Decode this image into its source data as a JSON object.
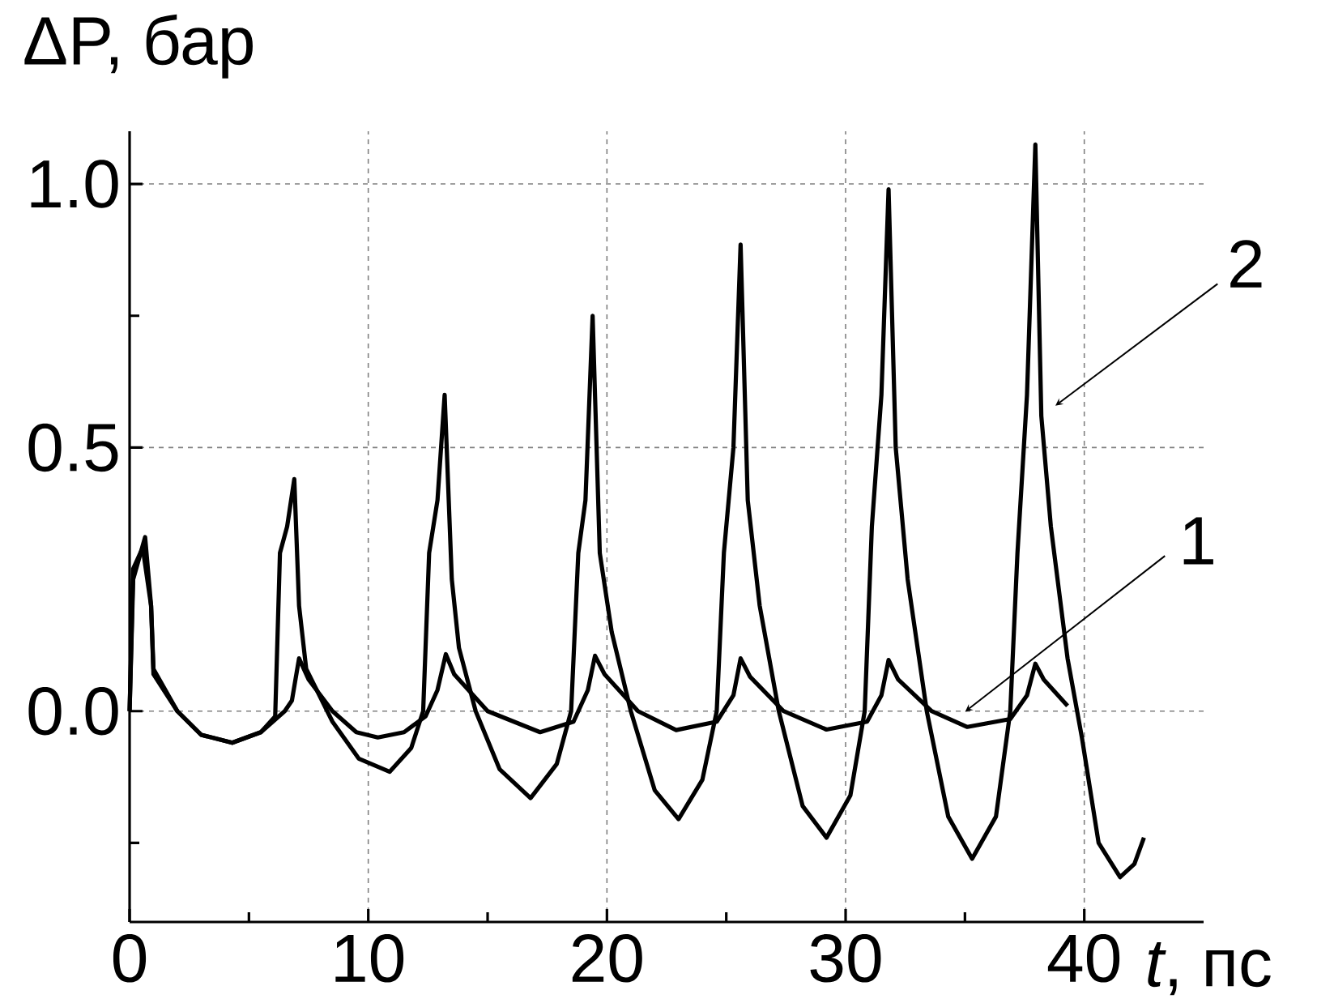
{
  "chart_data": {
    "type": "line",
    "xlabel": "*t*, пс",
    "ylabel": "ΔP, бар",
    "xlim": [
      0,
      45
    ],
    "ylim": [
      -0.4,
      1.1
    ],
    "xticks": [
      0,
      {
        "value": 5,
        "label": null
      },
      10,
      {
        "value": 15,
        "label": null
      },
      20,
      {
        "value": 25,
        "label": null
      },
      30,
      {
        "value": 35,
        "label": null
      },
      40
    ],
    "yticks": [
      {
        "value": -0.25,
        "label": null
      },
      {
        "value": 0,
        "label": "0.0"
      },
      {
        "value": 0.5,
        "label": "0.5"
      },
      {
        "value": 0.75,
        "label": null
      },
      {
        "value": 1.0,
        "label": "1.0"
      }
    ],
    "grid": true,
    "marker": "none",
    "line_style": "solid",
    "series": [
      {
        "color": "#000000",
        "x": [
          0,
          0.15,
          0.65,
          0.9,
          1.0,
          2,
          3,
          4.3,
          5.5,
          6.1,
          6.3,
          6.6,
          6.9,
          7.1,
          7.4,
          8.5,
          9.6,
          10.9,
          11.8,
          12.3,
          12.55,
          12.9,
          13.2,
          13.5,
          13.8,
          14.5,
          15.5,
          16.8,
          17.9,
          18.5,
          18.8,
          19.1,
          19.4,
          19.7,
          20.2,
          21,
          22,
          23,
          24,
          24.6,
          24.9,
          25.3,
          25.6,
          25.9,
          26.4,
          27.2,
          28.2,
          29.2,
          30.2,
          30.8,
          31.1,
          31.5,
          31.8,
          32.1,
          32.6,
          33.4,
          34.3,
          35.3,
          36.3,
          36.9,
          37.2,
          37.6,
          37.95,
          38.2,
          38.6,
          39.3,
          39.9,
          40.6,
          41.5,
          42.1,
          42.5
        ],
        "values": [
          0,
          0.25,
          0.33,
          0.2,
          0.08,
          0.0,
          -0.045,
          -0.06,
          -0.04,
          -0.01,
          0.3,
          0.35,
          0.44,
          0.2,
          0.08,
          -0.02,
          -0.09,
          -0.115,
          -0.07,
          0,
          0.3,
          0.4,
          0.6,
          0.25,
          0.12,
          0.0,
          -0.11,
          -0.165,
          -0.1,
          0.0,
          0.3,
          0.4,
          0.75,
          0.3,
          0.15,
          0.0,
          -0.15,
          -0.205,
          -0.13,
          0.0,
          0.3,
          0.5,
          0.885,
          0.4,
          0.2,
          0.0,
          -0.18,
          -0.24,
          -0.16,
          0.0,
          0.35,
          0.6,
          0.99,
          0.5,
          0.25,
          0.0,
          -0.2,
          -0.28,
          -0.2,
          0.0,
          0.3,
          0.6,
          1.075,
          0.56,
          0.35,
          0.1,
          -0.05,
          -0.25,
          -0.315,
          -0.29,
          -0.24
        ]
      },
      {
        "color": "#000000",
        "x": [
          0,
          0.15,
          0.55,
          0.9,
          1.0,
          2,
          3,
          4.3,
          5.5,
          6.5,
          6.8,
          7.1,
          7.5,
          8.5,
          9.5,
          10.4,
          11.5,
          12.4,
          12.9,
          13.25,
          13.6,
          15,
          17.2,
          18.6,
          19.2,
          19.5,
          19.9,
          21.3,
          22.9,
          24.6,
          25.3,
          25.6,
          26,
          27.4,
          29.2,
          30.9,
          31.5,
          31.8,
          32.2,
          33.6,
          35.1,
          36.9,
          37.6,
          37.95,
          38.3,
          39.3
        ],
        "values": [
          0,
          0.27,
          0.31,
          0.2,
          0.07,
          0.0,
          -0.045,
          -0.06,
          -0.04,
          0.0,
          0.02,
          0.1,
          0.06,
          0.0,
          -0.04,
          -0.05,
          -0.04,
          -0.01,
          0.04,
          0.108,
          0.07,
          0.0,
          -0.04,
          -0.02,
          0.04,
          0.105,
          0.07,
          0.0,
          -0.036,
          -0.02,
          0.03,
          0.1,
          0.065,
          0.0,
          -0.035,
          -0.02,
          0.03,
          0.097,
          0.06,
          0.0,
          -0.03,
          -0.015,
          0.03,
          0.09,
          0.06,
          0.01
        ]
      }
    ],
    "annotations": [
      "1",
      "2"
    ]
  }
}
